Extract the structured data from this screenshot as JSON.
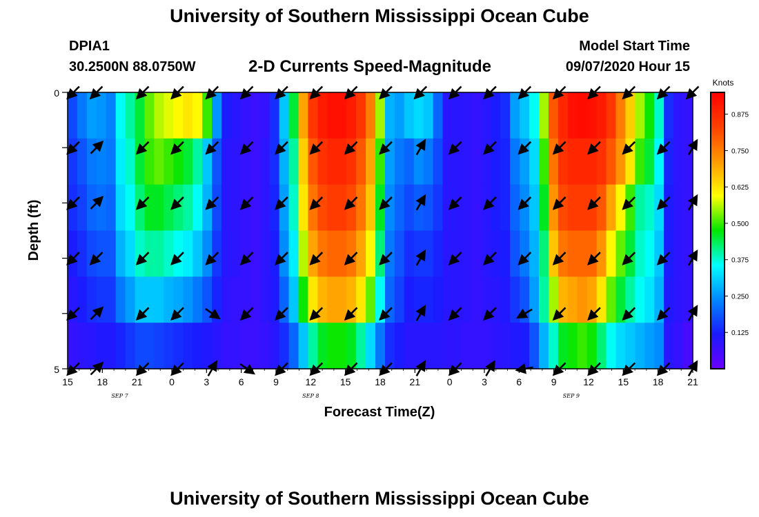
{
  "header": {
    "title": "University of Southern Mississippi Ocean Cube",
    "station_id": "DPIA1",
    "coordinates": "30.2500N 88.0750W",
    "subtitle": "2-D Currents Speed-Magnitude",
    "model_start_label": "Model Start Time",
    "model_start_value": "09/07/2020 Hour 15"
  },
  "footer": {
    "title": "University of Southern Mississippi Ocean Cube"
  },
  "chart_data": {
    "type": "heatmap",
    "title": "2-D Currents Speed-Magnitude",
    "xlabel": "Forecast Time(Z)",
    "ylabel": "Depth (ft)",
    "x_ticks": [
      "15",
      "18",
      "21",
      "0",
      "3",
      "6",
      "9",
      "12",
      "15",
      "18",
      "21",
      "0",
      "3",
      "6",
      "9",
      "12",
      "15",
      "18",
      "21"
    ],
    "x_hours": [
      0,
      54
    ],
    "date_labels": [
      {
        "text": "SEP 7",
        "hour": 4.5
      },
      {
        "text": "SEP 8",
        "hour": 21
      },
      {
        "text": "SEP 9",
        "hour": 43.5
      }
    ],
    "y_ticks": [
      "0",
      "5"
    ],
    "ylim": [
      0,
      5
    ],
    "depth_rows": 5,
    "colorbar": {
      "label": "Knots",
      "range": [
        0,
        0.95
      ],
      "ticks": [
        "0.125",
        "0.250",
        "0.375",
        "0.500",
        "0.625",
        "0.750",
        "0.875"
      ],
      "tick_values": [
        0.125,
        0.25,
        0.375,
        0.5,
        0.625,
        0.75,
        0.875
      ],
      "colors": [
        "#6a00ff",
        "#1a1aff",
        "#0088ff",
        "#00ffff",
        "#00e600",
        "#ffff00",
        "#ff9900",
        "#ff4000",
        "#ff0000"
      ]
    },
    "speed_knots": [
      [
        0.17,
        0.22,
        0.26,
        0.25,
        0.23,
        0.36,
        0.4,
        0.45,
        0.52,
        0.56,
        0.58,
        0.6,
        0.62,
        0.6,
        0.5,
        0.25,
        0.12,
        0.1,
        0.08,
        0.07,
        0.08,
        0.14,
        0.3,
        0.45,
        0.7,
        0.85,
        0.9,
        0.92,
        0.92,
        0.9,
        0.85,
        0.75,
        0.55,
        0.28,
        0.26,
        0.3,
        0.32,
        0.3,
        0.2,
        0.1,
        0.1,
        0.09,
        0.08,
        0.1,
        0.12,
        0.14,
        0.26,
        0.3,
        0.36,
        0.55,
        0.8,
        0.88,
        0.92,
        0.93,
        0.92,
        0.9,
        0.85,
        0.75,
        0.65,
        0.55,
        0.48,
        0.38,
        0.14,
        0.09,
        0.08
      ],
      [
        0.15,
        0.18,
        0.22,
        0.23,
        0.22,
        0.34,
        0.38,
        0.45,
        0.5,
        0.52,
        0.5,
        0.48,
        0.45,
        0.4,
        0.3,
        0.18,
        0.1,
        0.09,
        0.08,
        0.07,
        0.09,
        0.14,
        0.28,
        0.4,
        0.65,
        0.8,
        0.86,
        0.88,
        0.88,
        0.86,
        0.8,
        0.7,
        0.5,
        0.26,
        0.22,
        0.2,
        0.24,
        0.22,
        0.17,
        0.1,
        0.1,
        0.09,
        0.08,
        0.1,
        0.12,
        0.13,
        0.22,
        0.26,
        0.32,
        0.5,
        0.76,
        0.86,
        0.88,
        0.88,
        0.88,
        0.86,
        0.8,
        0.72,
        0.62,
        0.5,
        0.45,
        0.35,
        0.13,
        0.09,
        0.08
      ],
      [
        0.14,
        0.16,
        0.2,
        0.21,
        0.2,
        0.32,
        0.36,
        0.42,
        0.46,
        0.46,
        0.44,
        0.42,
        0.4,
        0.36,
        0.28,
        0.17,
        0.1,
        0.09,
        0.08,
        0.07,
        0.09,
        0.13,
        0.26,
        0.38,
        0.62,
        0.76,
        0.82,
        0.84,
        0.84,
        0.82,
        0.76,
        0.66,
        0.46,
        0.24,
        0.2,
        0.17,
        0.19,
        0.18,
        0.15,
        0.1,
        0.1,
        0.09,
        0.08,
        0.1,
        0.12,
        0.13,
        0.2,
        0.24,
        0.3,
        0.46,
        0.72,
        0.82,
        0.84,
        0.84,
        0.84,
        0.8,
        0.7,
        0.6,
        0.5,
        0.4,
        0.38,
        0.32,
        0.12,
        0.09,
        0.08
      ],
      [
        0.12,
        0.14,
        0.17,
        0.18,
        0.18,
        0.28,
        0.32,
        0.38,
        0.4,
        0.4,
        0.38,
        0.36,
        0.34,
        0.3,
        0.24,
        0.15,
        0.1,
        0.09,
        0.08,
        0.07,
        0.09,
        0.12,
        0.24,
        0.34,
        0.56,
        0.7,
        0.76,
        0.78,
        0.78,
        0.76,
        0.7,
        0.6,
        0.42,
        0.22,
        0.18,
        0.14,
        0.15,
        0.15,
        0.13,
        0.1,
        0.1,
        0.09,
        0.08,
        0.1,
        0.11,
        0.12,
        0.18,
        0.22,
        0.28,
        0.42,
        0.66,
        0.76,
        0.78,
        0.78,
        0.78,
        0.72,
        0.6,
        0.52,
        0.45,
        0.38,
        0.36,
        0.3,
        0.12,
        0.09,
        0.08
      ],
      [
        0.1,
        0.12,
        0.14,
        0.15,
        0.15,
        0.22,
        0.26,
        0.3,
        0.3,
        0.3,
        0.28,
        0.27,
        0.25,
        0.22,
        0.18,
        0.13,
        0.09,
        0.08,
        0.08,
        0.07,
        0.09,
        0.11,
        0.2,
        0.3,
        0.48,
        0.62,
        0.68,
        0.7,
        0.7,
        0.68,
        0.62,
        0.52,
        0.36,
        0.2,
        0.16,
        0.12,
        0.13,
        0.13,
        0.12,
        0.1,
        0.1,
        0.09,
        0.08,
        0.09,
        0.1,
        0.11,
        0.15,
        0.18,
        0.26,
        0.4,
        0.55,
        0.68,
        0.7,
        0.72,
        0.7,
        0.62,
        0.52,
        0.45,
        0.4,
        0.36,
        0.33,
        0.28,
        0.11,
        0.09,
        0.08
      ],
      [
        0.08,
        0.09,
        0.1,
        0.11,
        0.11,
        0.13,
        0.15,
        0.17,
        0.17,
        0.16,
        0.15,
        0.14,
        0.13,
        0.12,
        0.11,
        0.1,
        0.08,
        0.08,
        0.07,
        0.07,
        0.08,
        0.1,
        0.14,
        0.2,
        0.3,
        0.4,
        0.46,
        0.48,
        0.48,
        0.46,
        0.4,
        0.32,
        0.22,
        0.14,
        0.12,
        0.1,
        0.1,
        0.1,
        0.1,
        0.09,
        0.09,
        0.08,
        0.08,
        0.08,
        0.09,
        0.1,
        0.11,
        0.12,
        0.18,
        0.28,
        0.38,
        0.46,
        0.48,
        0.5,
        0.48,
        0.42,
        0.36,
        0.32,
        0.3,
        0.28,
        0.26,
        0.24,
        0.1,
        0.08,
        0.05
      ]
    ],
    "vector_times": [
      0.5,
      2.5,
      6.5,
      9.5,
      12.5,
      15.5,
      18.5,
      21.5,
      24.5,
      27.5,
      30.5,
      33.5,
      36.5,
      39.5,
      42.5,
      45.5,
      48.5,
      51.5,
      54
    ],
    "vector_depths": [
      0.0,
      1.0,
      2.0,
      3.0,
      4.0,
      5.0
    ],
    "vector_angles_deg": [
      [
        135,
        135,
        135,
        135,
        135,
        135,
        135,
        135,
        135,
        135,
        135,
        135,
        135,
        135,
        135,
        135,
        135,
        135,
        135
      ],
      [
        135,
        315,
        135,
        135,
        135,
        135,
        135,
        135,
        135,
        135,
        300,
        135,
        135,
        135,
        135,
        135,
        135,
        135,
        300
      ],
      [
        135,
        315,
        135,
        135,
        135,
        135,
        135,
        135,
        135,
        135,
        300,
        135,
        135,
        135,
        135,
        135,
        135,
        135,
        300
      ],
      [
        135,
        135,
        135,
        135,
        135,
        135,
        135,
        135,
        135,
        135,
        300,
        135,
        135,
        135,
        135,
        135,
        135,
        135,
        300
      ],
      [
        135,
        315,
        135,
        135,
        35,
        135,
        135,
        135,
        135,
        135,
        300,
        135,
        135,
        150,
        135,
        135,
        135,
        135,
        300
      ],
      [
        135,
        315,
        135,
        135,
        300,
        35,
        135,
        135,
        135,
        135,
        300,
        135,
        300,
        170,
        135,
        135,
        135,
        135,
        300
      ]
    ]
  }
}
